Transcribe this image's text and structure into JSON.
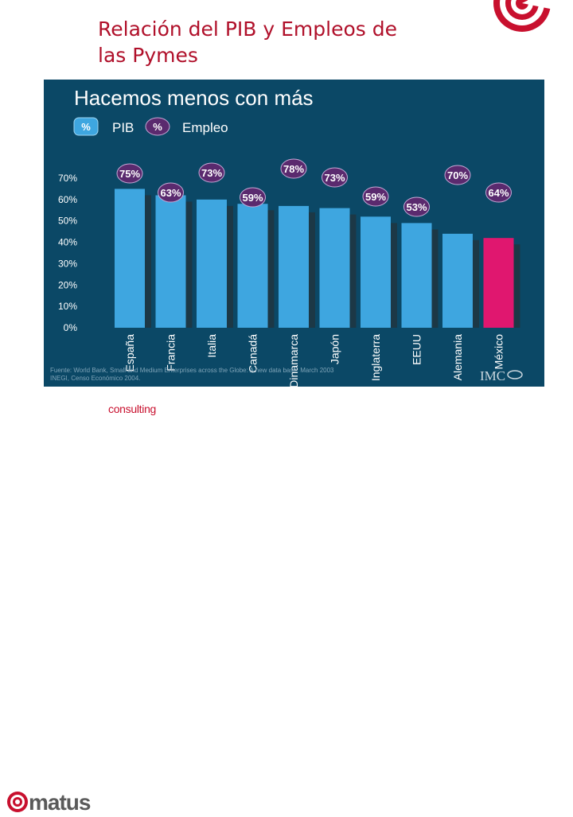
{
  "slide": {
    "title_line1": "Relación del PIB y Empleos de",
    "title_line2": "las Pymes"
  },
  "colors": {
    "title": "#b0102a",
    "panel_bg": "#0b4866",
    "bar_blue": "#3ea6e0",
    "bar_pink": "#e0176f",
    "badge": "#5a2a6e",
    "brand_red": "#c8102e"
  },
  "chart_data": {
    "type": "bar",
    "title": "Hacemos menos con más",
    "legend": [
      {
        "symbol": "%",
        "label": "PIB",
        "color": "#3ea6e0"
      },
      {
        "symbol": "%",
        "label": "Empleo",
        "color": "#5a2a6e"
      }
    ],
    "categories": [
      "España",
      "Francia",
      "Italia",
      "Canadá",
      "Dinamarca",
      "Japón",
      "Inglaterra",
      "EEUU",
      "Alemania",
      "México"
    ],
    "series": [
      {
        "name": "PIB",
        "values": [
          65,
          62,
          60,
          58,
          57,
          56,
          52,
          49,
          44,
          42
        ]
      },
      {
        "name": "Empleo",
        "labels": [
          "75%",
          "63%",
          "73%",
          "59%",
          "78%",
          "73%",
          "59%",
          "53%",
          "70%",
          "64%"
        ]
      }
    ],
    "highlight_category": "México",
    "y_ticks": [
      "0%",
      "10%",
      "20%",
      "30%",
      "40%",
      "50%",
      "60%",
      "70%"
    ],
    "ylim": [
      0,
      70
    ],
    "source_line1": "Fuente: World Bank, Small and Medium Enterprises across the Globe: A new data base. March 2003",
    "source_line2": "INEGI, Censo Económico 2004.",
    "badge_brand": "IMC"
  },
  "footer": {
    "brand": "matus",
    "tagline": "consulting"
  }
}
